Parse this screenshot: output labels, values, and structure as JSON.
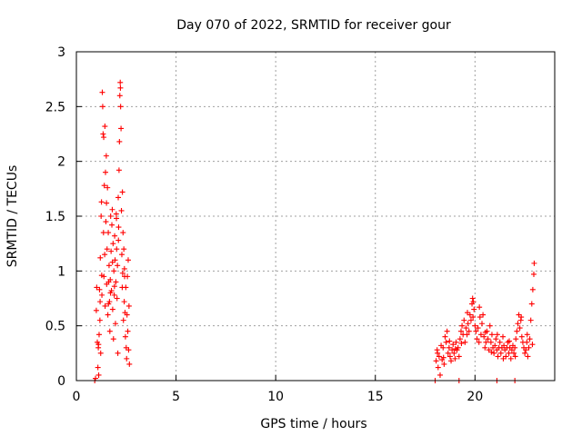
{
  "chart_data": {
    "type": "scatter",
    "title": "Day 070 of 2022, SRMTID for receiver gour",
    "xlabel": "GPS time / hours",
    "ylabel": "SRMTID / TECUs",
    "xlim": [
      0,
      24
    ],
    "ylim": [
      0,
      3
    ],
    "xticks": [
      0,
      5,
      10,
      15,
      20
    ],
    "yticks": [
      0,
      0.5,
      1,
      1.5,
      2,
      2.5,
      3
    ],
    "xtick_labels": [
      "0",
      "5",
      "10",
      "15",
      "20"
    ],
    "ytick_labels": [
      "0",
      "0.5",
      "1",
      "1.5",
      "2",
      "2.5",
      "3"
    ],
    "grid": true,
    "marker": "+",
    "color": "#ff0000",
    "series": [
      {
        "name": "SRMTID",
        "points": [
          [
            0.92,
            0.0
          ],
          [
            0.96,
            0.02
          ],
          [
            1.0,
            0.64
          ],
          [
            1.02,
            0.85
          ],
          [
            1.05,
            0.35
          ],
          [
            1.08,
            0.12
          ],
          [
            1.1,
            0.3
          ],
          [
            1.12,
            0.05
          ],
          [
            1.14,
            0.42
          ],
          [
            1.16,
            0.83
          ],
          [
            1.18,
            0.55
          ],
          [
            1.2,
            1.12
          ],
          [
            1.22,
            0.25
          ],
          [
            1.24,
            1.5
          ],
          [
            1.26,
            1.63
          ],
          [
            1.28,
            0.78
          ],
          [
            1.3,
            2.63
          ],
          [
            1.32,
            2.5
          ],
          [
            1.34,
            2.25
          ],
          [
            1.36,
            1.35
          ],
          [
            1.38,
            0.95
          ],
          [
            1.4,
            1.78
          ],
          [
            1.42,
            1.15
          ],
          [
            1.44,
            0.68
          ],
          [
            1.46,
            1.9
          ],
          [
            1.48,
            1.45
          ],
          [
            1.5,
            2.05
          ],
          [
            1.52,
            0.88
          ],
          [
            1.54,
            1.2
          ],
          [
            1.56,
            1.76
          ],
          [
            1.58,
            0.6
          ],
          [
            1.6,
            1.35
          ],
          [
            1.62,
            0.9
          ],
          [
            1.64,
            1.05
          ],
          [
            1.66,
            0.72
          ],
          [
            1.68,
            0.45
          ],
          [
            1.7,
            0.92
          ],
          [
            1.72,
            1.5
          ],
          [
            1.74,
            1.18
          ],
          [
            1.76,
            0.82
          ],
          [
            1.78,
            1.42
          ],
          [
            1.8,
            1.56
          ],
          [
            1.82,
            0.65
          ],
          [
            1.84,
            1.25
          ],
          [
            1.86,
            0.38
          ],
          [
            1.88,
            1.0
          ],
          [
            1.9,
            0.78
          ],
          [
            1.92,
            1.32
          ],
          [
            1.94,
            1.1
          ],
          [
            1.96,
            0.52
          ],
          [
            1.98,
            0.9
          ],
          [
            2.0,
            1.52
          ],
          [
            2.02,
            1.2
          ],
          [
            2.04,
            0.75
          ],
          [
            2.06,
            1.05
          ],
          [
            2.08,
            0.25
          ],
          [
            2.1,
            1.67
          ],
          [
            2.12,
            1.4
          ],
          [
            2.14,
            1.92
          ],
          [
            2.16,
            2.18
          ],
          [
            2.18,
            2.6
          ],
          [
            2.2,
            2.72
          ],
          [
            2.22,
            2.5
          ],
          [
            2.24,
            2.3
          ],
          [
            2.26,
            1.55
          ],
          [
            2.28,
            1.15
          ],
          [
            2.3,
            0.85
          ],
          [
            2.32,
            0.98
          ],
          [
            2.34,
            1.35
          ],
          [
            2.36,
            0.55
          ],
          [
            2.38,
            1.2
          ],
          [
            2.4,
            0.72
          ],
          [
            2.42,
            0.95
          ],
          [
            2.44,
            0.62
          ],
          [
            2.46,
            0.4
          ],
          [
            2.48,
            0.85
          ],
          [
            2.5,
            0.3
          ],
          [
            2.52,
            0.2
          ],
          [
            2.54,
            0.6
          ],
          [
            2.56,
            0.95
          ],
          [
            2.58,
            0.45
          ],
          [
            2.6,
            1.1
          ],
          [
            2.62,
            0.28
          ],
          [
            2.64,
            0.68
          ],
          [
            2.66,
            0.15
          ],
          [
            1.11,
            0.33
          ],
          [
            1.19,
            0.72
          ],
          [
            1.27,
            0.96
          ],
          [
            1.37,
            2.22
          ],
          [
            1.43,
            2.32
          ],
          [
            1.51,
            1.62
          ],
          [
            1.61,
            0.7
          ],
          [
            1.71,
            0.8
          ],
          [
            1.81,
            1.08
          ],
          [
            1.91,
            0.86
          ],
          [
            2.01,
            1.48
          ],
          [
            2.11,
            1.28
          ],
          [
            2.21,
            2.67
          ],
          [
            2.31,
            1.72
          ],
          [
            2.41,
            1.02
          ],
          [
            18.05,
            0.18
          ],
          [
            18.1,
            0.28
          ],
          [
            18.15,
            0.12
          ],
          [
            18.2,
            0.22
          ],
          [
            18.25,
            0.05
          ],
          [
            18.3,
            0.32
          ],
          [
            18.35,
            0.19
          ],
          [
            18.4,
            0.3
          ],
          [
            18.45,
            0.15
          ],
          [
            18.5,
            0.4
          ],
          [
            18.55,
            0.35
          ],
          [
            18.6,
            0.45
          ],
          [
            18.65,
            0.25
          ],
          [
            18.7,
            0.3
          ],
          [
            18.75,
            0.22
          ],
          [
            18.8,
            0.18
          ],
          [
            18.85,
            0.28
          ],
          [
            18.9,
            0.33
          ],
          [
            18.95,
            0.25
          ],
          [
            19.0,
            0.2
          ],
          [
            19.05,
            0.35
          ],
          [
            19.1,
            0.28
          ],
          [
            19.15,
            0.3
          ],
          [
            19.2,
            0.22
          ],
          [
            19.25,
            0.38
          ],
          [
            19.3,
            0.45
          ],
          [
            19.35,
            0.5
          ],
          [
            19.4,
            0.42
          ],
          [
            19.45,
            0.55
          ],
          [
            19.5,
            0.35
          ],
          [
            19.55,
            0.48
          ],
          [
            19.6,
            0.42
          ],
          [
            19.65,
            0.52
          ],
          [
            19.7,
            0.45
          ],
          [
            19.75,
            0.6
          ],
          [
            19.8,
            0.55
          ],
          [
            19.85,
            0.7
          ],
          [
            19.9,
            0.58
          ],
          [
            19.95,
            0.65
          ],
          [
            20.0,
            0.5
          ],
          [
            20.05,
            0.45
          ],
          [
            20.1,
            0.38
          ],
          [
            20.15,
            0.48
          ],
          [
            20.2,
            0.35
          ],
          [
            20.25,
            0.58
          ],
          [
            20.3,
            0.42
          ],
          [
            20.35,
            0.52
          ],
          [
            20.4,
            0.6
          ],
          [
            20.45,
            0.4
          ],
          [
            20.5,
            0.3
          ],
          [
            20.55,
            0.35
          ],
          [
            20.6,
            0.45
          ],
          [
            20.65,
            0.38
          ],
          [
            20.7,
            0.28
          ],
          [
            20.75,
            0.5
          ],
          [
            20.8,
            0.35
          ],
          [
            20.85,
            0.42
          ],
          [
            20.9,
            0.3
          ],
          [
            20.95,
            0.25
          ],
          [
            21.0,
            0.32
          ],
          [
            21.05,
            0.38
          ],
          [
            21.1,
            0.28
          ],
          [
            21.15,
            0.22
          ],
          [
            21.2,
            0.3
          ],
          [
            21.25,
            0.35
          ],
          [
            21.3,
            0.25
          ],
          [
            21.35,
            0.3
          ],
          [
            21.4,
            0.4
          ],
          [
            21.45,
            0.32
          ],
          [
            21.5,
            0.28
          ],
          [
            21.55,
            0.22
          ],
          [
            21.6,
            0.3
          ],
          [
            21.65,
            0.35
          ],
          [
            21.7,
            0.25
          ],
          [
            21.75,
            0.3
          ],
          [
            21.8,
            0.2
          ],
          [
            21.85,
            0.28
          ],
          [
            21.9,
            0.32
          ],
          [
            21.95,
            0.25
          ],
          [
            22.0,
            0.3
          ],
          [
            22.05,
            0.38
          ],
          [
            22.1,
            0.45
          ],
          [
            22.15,
            0.52
          ],
          [
            22.2,
            0.6
          ],
          [
            22.25,
            0.48
          ],
          [
            22.3,
            0.55
          ],
          [
            22.35,
            0.4
          ],
          [
            22.4,
            0.35
          ],
          [
            22.45,
            0.3
          ],
          [
            22.5,
            0.25
          ],
          [
            22.55,
            0.28
          ],
          [
            22.6,
            0.35
          ],
          [
            22.65,
            0.22
          ],
          [
            22.7,
            0.3
          ],
          [
            22.75,
            0.38
          ],
          [
            22.8,
            0.55
          ],
          [
            22.85,
            0.7
          ],
          [
            22.9,
            0.83
          ],
          [
            22.95,
            0.97
          ],
          [
            22.97,
            1.07
          ],
          [
            18.12,
            0.25
          ],
          [
            18.42,
            0.21
          ],
          [
            18.72,
            0.36
          ],
          [
            19.02,
            0.29
          ],
          [
            19.32,
            0.34
          ],
          [
            19.62,
            0.62
          ],
          [
            19.88,
            0.75
          ],
          [
            19.92,
            0.72
          ],
          [
            20.22,
            0.67
          ],
          [
            20.52,
            0.44
          ],
          [
            20.82,
            0.26
          ],
          [
            21.12,
            0.42
          ],
          [
            21.42,
            0.2
          ],
          [
            21.72,
            0.36
          ],
          [
            22.02,
            0.22
          ],
          [
            22.32,
            0.58
          ],
          [
            22.62,
            0.42
          ],
          [
            22.88,
            0.33
          ],
          [
            18.0,
            0.0
          ],
          [
            19.2,
            0.0
          ],
          [
            21.1,
            0.0
          ],
          [
            22.0,
            0.0
          ]
        ]
      }
    ]
  }
}
